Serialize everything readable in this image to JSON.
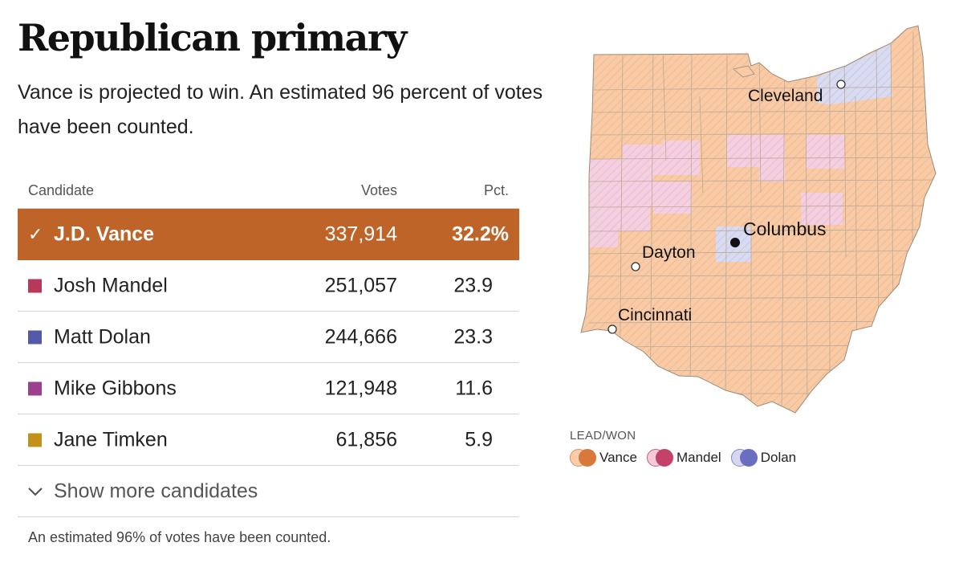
{
  "header": {
    "title": "Republican primary",
    "subtitle": "Vance is projected to win. An estimated 96 percent of votes have been counted."
  },
  "table": {
    "columns": {
      "candidate": "Candidate",
      "votes": "Votes",
      "pct": "Pct."
    },
    "rows": [
      {
        "name": "J.D. Vance",
        "votes": "337,914",
        "pct": "32.2%",
        "color": "#bf6428",
        "winner": true
      },
      {
        "name": "Josh Mandel",
        "votes": "251,057",
        "pct": "23.9",
        "color": "#b8385a",
        "winner": false
      },
      {
        "name": "Matt Dolan",
        "votes": "244,666",
        "pct": "23.3",
        "color": "#5358a8",
        "winner": false
      },
      {
        "name": "Mike Gibbons",
        "votes": "121,948",
        "pct": "11.6",
        "color": "#9b3f8e",
        "winner": false
      },
      {
        "name": "Jane Timken",
        "votes": "61,856",
        "pct": "5.9",
        "color": "#c4901c",
        "winner": false
      }
    ],
    "show_more": "Show more candidates",
    "check_icon": "checkmark-icon",
    "chevron_icon": "chevron-down-icon"
  },
  "footnote": "An estimated 96% of votes have been counted.",
  "map": {
    "state": "Ohio",
    "colors": {
      "vance_fill": "#f8cba6",
      "mandel_fill": "#f3cfe0",
      "dolan_fill": "#d9dbf0",
      "border": "#ad9b8a"
    },
    "cities": {
      "cleveland": "Cleveland",
      "columbus": "Columbus",
      "dayton": "Dayton",
      "cincinnati": "Cincinnati"
    },
    "legend": {
      "title": "LEAD/WON",
      "items": [
        {
          "label": "Vance",
          "light": "#f8c49c",
          "dark": "#d8783a"
        },
        {
          "label": "Mandel",
          "light": "#f3c1d4",
          "dark": "#c4416a"
        },
        {
          "label": "Dolan",
          "light": "#cfd2ee",
          "dark": "#6a6ec0"
        }
      ]
    }
  }
}
